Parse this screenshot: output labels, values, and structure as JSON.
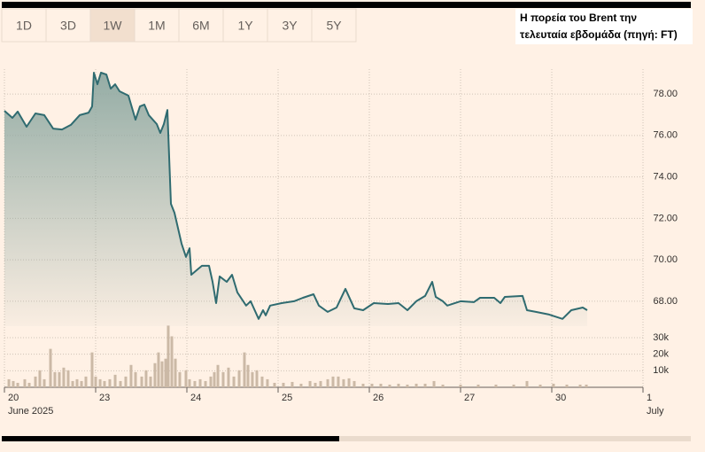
{
  "tabs": {
    "labels": [
      "1D",
      "3D",
      "1W",
      "1M",
      "6M",
      "1Y",
      "3Y",
      "5Y"
    ],
    "selected": 2
  },
  "note": [
    "Η πορεία του Brent την",
    "τελευταία εβδομάδα (πηγή: FT)"
  ],
  "chart_data": {
    "type": "line",
    "color": "#2f6b70",
    "area_color": "#8fa9a2",
    "grid": true,
    "xlim": [
      0,
      7
    ],
    "xticks": [
      {
        "value": 0,
        "label": "20"
      },
      {
        "value": 1,
        "label": "23"
      },
      {
        "value": 2,
        "label": "24"
      },
      {
        "value": 3,
        "label": "25"
      },
      {
        "value": 4,
        "label": "26"
      },
      {
        "value": 5,
        "label": "27"
      },
      {
        "value": 6,
        "label": "30"
      },
      {
        "value": 7,
        "label": "1"
      }
    ],
    "month_labels": [
      {
        "value": 0,
        "label": "June 2025"
      },
      {
        "value": 7,
        "label": "July"
      }
    ],
    "ylim": [
      66.8,
      79.2
    ],
    "yticks": [
      {
        "value": 68,
        "label": "68.00"
      },
      {
        "value": 70,
        "label": "70.00"
      },
      {
        "value": 72,
        "label": "72.00"
      },
      {
        "value": 74,
        "label": "74.00"
      },
      {
        "value": 76,
        "label": "76.00"
      },
      {
        "value": 78,
        "label": "78.00"
      }
    ],
    "x": [
      0,
      0.087,
      0.146,
      0.243,
      0.34,
      0.437,
      0.534,
      0.631,
      0.728,
      0.825,
      0.922,
      0.961,
      0.981,
      1.019,
      1.058,
      1.117,
      1.165,
      1.214,
      1.262,
      1.359,
      1.437,
      1.485,
      1.534,
      1.583,
      1.67,
      1.709,
      1.748,
      1.786,
      1.825,
      1.864,
      1.942,
      1.99,
      2.029,
      2.049,
      2.107,
      2.165,
      2.243,
      2.282,
      2.32,
      2.359,
      2.437,
      2.495,
      2.553,
      2.65,
      2.699,
      2.786,
      2.835,
      2.864,
      2.913,
      3.039,
      3.175,
      3.272,
      3.388,
      3.447,
      3.544,
      3.641,
      3.738,
      3.835,
      3.932,
      4.049,
      4.204,
      4.32,
      4.417,
      4.515,
      4.612,
      4.689,
      4.728,
      4.806,
      4.854,
      5.0,
      5.146,
      5.214,
      5.369,
      5.437,
      5.485,
      5.68,
      5.728,
      5.825,
      5.971,
      6.117,
      6.214,
      6.34,
      6.388
    ],
    "values": [
      77.19,
      76.85,
      77.15,
      76.42,
      77.06,
      76.98,
      76.33,
      76.29,
      76.51,
      76.98,
      77.1,
      77.4,
      79.03,
      78.47,
      79.03,
      78.94,
      78.26,
      78.47,
      78.13,
      77.92,
      76.76,
      77.4,
      77.49,
      76.98,
      76.55,
      76.12,
      76.55,
      77.23,
      72.7,
      72.27,
      70.78,
      70.14,
      70.56,
      69.28,
      69.5,
      69.71,
      69.71,
      68.94,
      67.91,
      69.2,
      68.94,
      69.28,
      68.43,
      67.79,
      68.0,
      67.15,
      67.57,
      67.32,
      67.79,
      67.91,
      68.0,
      68.17,
      68.34,
      67.79,
      67.49,
      67.7,
      68.6,
      67.66,
      67.57,
      67.91,
      67.87,
      67.91,
      67.57,
      68.0,
      68.26,
      68.94,
      68.21,
      68.0,
      67.79,
      68.0,
      67.96,
      68.17,
      68.17,
      67.91,
      68.21,
      68.26,
      67.57,
      67.49,
      67.36,
      67.15,
      67.57,
      67.7,
      67.57
    ],
    "volume": {
      "color": "#cbb9a6",
      "ylim": [
        0,
        38000
      ],
      "yticks": [
        {
          "value": 10000,
          "label": "10k"
        },
        {
          "value": 20000,
          "label": "20k"
        },
        {
          "value": 30000,
          "label": "30k"
        }
      ],
      "x": [
        0.049,
        0.097,
        0.146,
        0.223,
        0.272,
        0.34,
        0.388,
        0.437,
        0.505,
        0.553,
        0.602,
        0.65,
        0.699,
        0.748,
        0.796,
        0.845,
        0.893,
        0.961,
        1.0,
        1.049,
        1.097,
        1.155,
        1.214,
        1.272,
        1.33,
        1.388,
        1.437,
        1.505,
        1.553,
        1.602,
        1.65,
        1.689,
        1.728,
        1.767,
        1.796,
        1.835,
        1.874,
        1.922,
        1.99,
        2.029,
        2.087,
        2.146,
        2.204,
        2.262,
        2.301,
        2.34,
        2.398,
        2.456,
        2.515,
        2.573,
        2.631,
        2.67,
        2.718,
        2.767,
        2.825,
        2.883,
        2.961,
        3.058,
        3.155,
        3.252,
        3.35,
        3.408,
        3.466,
        3.544,
        3.602,
        3.66,
        3.718,
        3.777,
        3.835,
        3.932,
        4.029,
        4.126,
        4.223,
        4.32,
        4.417,
        4.515,
        4.612,
        4.709,
        4.806,
        5.0,
        5.194,
        5.388,
        5.583,
        5.728,
        5.874,
        6.019,
        6.165,
        6.311,
        6.379
      ],
      "values": [
        4860,
        3780,
        2700,
        4860,
        2700,
        6480,
        10260,
        4860,
        23220,
        9180,
        9180,
        11880,
        10260,
        3780,
        4860,
        3780,
        6480,
        21060,
        6480,
        4860,
        3780,
        4860,
        7560,
        3780,
        6480,
        13500,
        9180,
        6480,
        10260,
        6480,
        14580,
        21060,
        15660,
        17280,
        37260,
        30780,
        17280,
        9180,
        10260,
        4860,
        3780,
        4860,
        3780,
        6480,
        9180,
        13500,
        9180,
        11880,
        6480,
        10260,
        21060,
        13500,
        9180,
        10260,
        6480,
        4860,
        2700,
        2700,
        3240,
        2160,
        3780,
        2700,
        3780,
        4860,
        6480,
        6480,
        4860,
        5400,
        3780,
        2160,
        2160,
        2160,
        1620,
        2160,
        1620,
        2160,
        2160,
        3780,
        1620,
        1620,
        1620,
        1620,
        1620,
        3780,
        1620,
        2160,
        1620,
        1620,
        1620
      ]
    }
  }
}
